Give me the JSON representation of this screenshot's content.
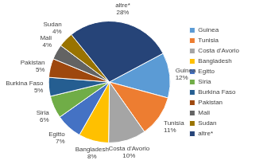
{
  "chart_data": {
    "type": "pie",
    "categories": [
      "Guinea",
      "Tunisia",
      "Costa d'Avorio",
      "Bangladesh",
      "Egitto",
      "Siria",
      "Burkina Faso",
      "Pakistan",
      "Mali",
      "Sudan",
      "altre*"
    ],
    "values": [
      12,
      11,
      10,
      8,
      7,
      6,
      5,
      5,
      4,
      4,
      28
    ],
    "value_labels": [
      "12%",
      "11%",
      "10%",
      "8%",
      "7%",
      "6%",
      "5%",
      "5%",
      "4%",
      "4%",
      "28%"
    ],
    "colors": [
      "#5b9bd5",
      "#ed7d31",
      "#a5a5a5",
      "#ffc000",
      "#4472c4",
      "#70ad47",
      "#255e91",
      "#9e480e",
      "#636363",
      "#997300",
      "#264478"
    ],
    "legend": "right",
    "data_labels": true
  }
}
